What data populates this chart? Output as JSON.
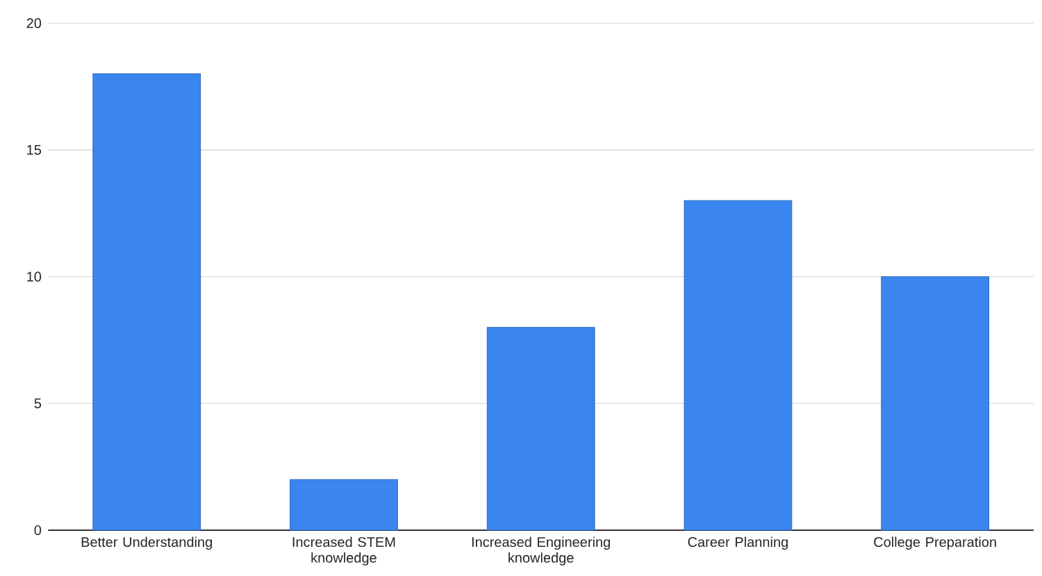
{
  "chart_data": {
    "type": "bar",
    "categories": [
      "Better Understanding",
      "Increased STEM knowledge",
      "Increased Engineering knowledge",
      "Career Planning",
      "College Preparation"
    ],
    "values": [
      18,
      2,
      8,
      13,
      10
    ],
    "color": "#3b86ee",
    "ylim": [
      0,
      20
    ],
    "yticks": [
      0,
      5,
      10,
      15,
      20
    ],
    "grid": "y"
  }
}
